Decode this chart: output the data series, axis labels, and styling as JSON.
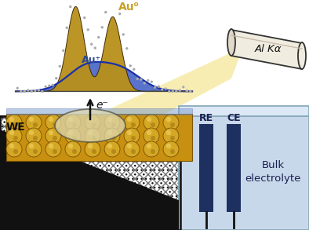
{
  "bg_color": "#ffffff",
  "electrolyte_color": "#c8d8eb",
  "electrolyte_top_color": "#dce8f5",
  "electrolyte_edge_color": "#8aaabb",
  "re_ce_color": "#1e3060",
  "au_plus_color": "#2c4a90",
  "au0_color": "#c8a020",
  "peak_fill_color": "#b8901a",
  "peak_outline_color": "#3a2200",
  "peak_blue_color": "#2244bb",
  "peak_blue_fill": "#2244bb",
  "beam_color": "#f5e898",
  "tube_body_color": "#f0ede0",
  "tube_edge_color": "#333333",
  "substrate_hatch_color": "#888888",
  "substrate_black": "#1a1a1a",
  "we_gold_color": "#d4a020",
  "we_gold_dark": "#8b6000",
  "sphere_color": "#c89010",
  "sphere_highlight": "#f0d060",
  "film_color": "#aabbdd",
  "probe_color": "#e0d8b8",
  "stem_color": "#111111",
  "text_dark": "#1a2050",
  "text_we": "#111111",
  "tube_label": "Al Kα",
  "we_label": "WE",
  "re_label": "RE",
  "ce_label": "CE",
  "bulk_label1": "Bulk",
  "bulk_label2": "electrolyte",
  "au_plus_label": "Au⁺",
  "au0_label": "Au⁰",
  "e_label": "e⁻"
}
